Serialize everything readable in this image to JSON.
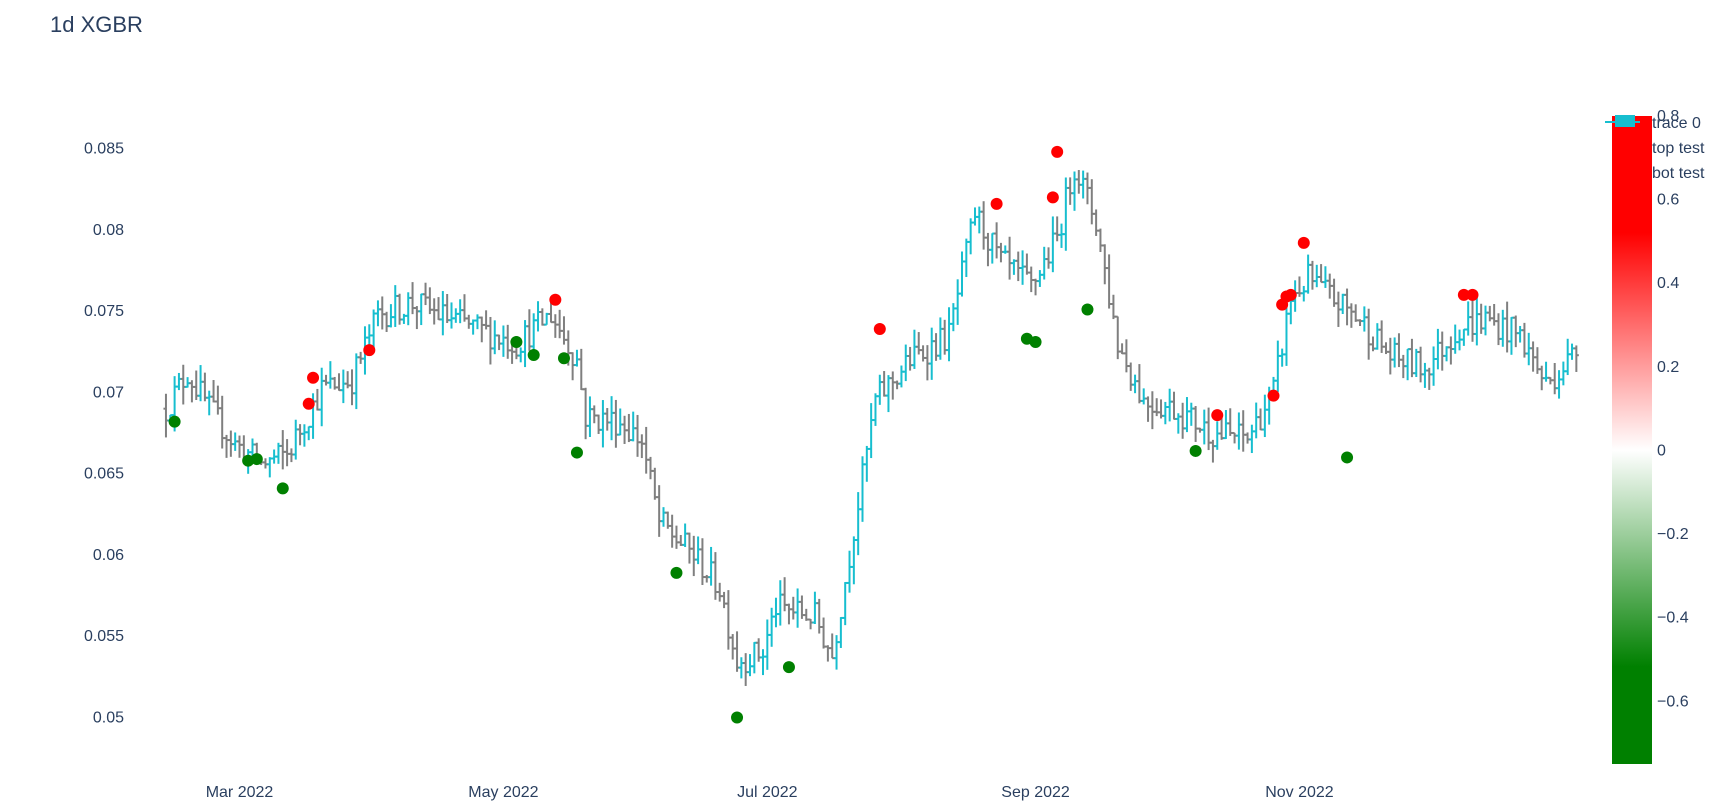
{
  "chart_data": {
    "type": "ohlc",
    "title": "1d XGBR",
    "xlabel": "",
    "ylabel": "",
    "grid": false,
    "x_range": [
      "2022-02-06",
      "2023-01-06"
    ],
    "y_range": [
      0.048,
      0.0875
    ],
    "x_ticks": [
      {
        "date": "2022-03-01",
        "label": "Mar 2022"
      },
      {
        "date": "2022-05-01",
        "label": "May 2022"
      },
      {
        "date": "2022-07-01",
        "label": "Jul 2022"
      },
      {
        "date": "2022-09-01",
        "label": "Sep 2022"
      },
      {
        "date": "2022-11-01",
        "label": "Nov 2022"
      }
    ],
    "y_ticks": [
      0.05,
      0.055,
      0.06,
      0.065,
      0.07,
      0.075,
      0.08,
      0.085
    ],
    "y_tick_labels": [
      "0.05",
      "0.055",
      "0.06",
      "0.065",
      "0.07",
      "0.075",
      "0.08",
      "0.085"
    ],
    "colors": {
      "increasing": "#17becf",
      "decreasing": "#7f7f7f",
      "top": "#ff0000",
      "bot": "#008000"
    },
    "price_path": [
      [
        "2022-02-12",
        0.069
      ],
      [
        "2022-02-17",
        0.0712
      ],
      [
        "2022-02-22",
        0.069
      ],
      [
        "2022-02-28",
        0.0668
      ],
      [
        "2022-03-06",
        0.0656
      ],
      [
        "2022-03-12",
        0.0662
      ],
      [
        "2022-03-20",
        0.0702
      ],
      [
        "2022-03-27",
        0.0708
      ],
      [
        "2022-04-02",
        0.0748
      ],
      [
        "2022-04-10",
        0.0755
      ],
      [
        "2022-04-18",
        0.0746
      ],
      [
        "2022-04-26",
        0.0738
      ],
      [
        "2022-05-04",
        0.073
      ],
      [
        "2022-05-12",
        0.0748
      ],
      [
        "2022-05-18",
        0.072
      ],
      [
        "2022-05-20",
        0.0685
      ],
      [
        "2022-05-28",
        0.0682
      ],
      [
        "2022-06-02",
        0.067
      ],
      [
        "2022-06-06",
        0.062
      ],
      [
        "2022-06-14",
        0.06
      ],
      [
        "2022-06-20",
        0.058
      ],
      [
        "2022-06-24",
        0.0535
      ],
      [
        "2022-06-30",
        0.054
      ],
      [
        "2022-07-03",
        0.0568
      ],
      [
        "2022-07-12",
        0.0562
      ],
      [
        "2022-07-16",
        0.0538
      ],
      [
        "2022-07-20",
        0.06
      ],
      [
        "2022-07-26",
        0.0695
      ],
      [
        "2022-08-03",
        0.072
      ],
      [
        "2022-08-12",
        0.0735
      ],
      [
        "2022-08-18",
        0.081
      ],
      [
        "2022-08-24",
        0.078
      ],
      [
        "2022-08-31",
        0.0765
      ],
      [
        "2022-09-06",
        0.0795
      ],
      [
        "2022-09-10",
        0.084
      ],
      [
        "2022-09-15",
        0.0805
      ],
      [
        "2022-09-20",
        0.073
      ],
      [
        "2022-09-26",
        0.0695
      ],
      [
        "2022-10-03",
        0.069
      ],
      [
        "2022-10-12",
        0.0675
      ],
      [
        "2022-10-20",
        0.0672
      ],
      [
        "2022-10-26",
        0.07
      ],
      [
        "2022-10-30",
        0.0758
      ],
      [
        "2022-11-03",
        0.077
      ],
      [
        "2022-11-10",
        0.0755
      ],
      [
        "2022-11-15",
        0.0745
      ],
      [
        "2022-11-22",
        0.0722
      ],
      [
        "2022-11-30",
        0.0715
      ],
      [
        "2022-12-08",
        0.074
      ],
      [
        "2022-12-14",
        0.0745
      ],
      [
        "2022-12-22",
        0.0735
      ],
      [
        "2022-12-28",
        0.0705
      ],
      [
        "2023-01-04",
        0.0725
      ]
    ],
    "series": [
      {
        "name": "top test",
        "color": "#ff0000",
        "points": [
          {
            "x": "2022-03-17",
            "y": 0.0693
          },
          {
            "x": "2022-03-18",
            "y": 0.0709
          },
          {
            "x": "2022-03-31",
            "y": 0.0726
          },
          {
            "x": "2022-05-13",
            "y": 0.0757
          },
          {
            "x": "2022-07-27",
            "y": 0.0739
          },
          {
            "x": "2022-08-23",
            "y": 0.0816
          },
          {
            "x": "2022-09-05",
            "y": 0.082
          },
          {
            "x": "2022-09-06",
            "y": 0.0848
          },
          {
            "x": "2022-10-13",
            "y": 0.0686
          },
          {
            "x": "2022-10-26",
            "y": 0.0698
          },
          {
            "x": "2022-10-28",
            "y": 0.0754
          },
          {
            "x": "2022-10-29",
            "y": 0.0759
          },
          {
            "x": "2022-10-30",
            "y": 0.076
          },
          {
            "x": "2022-11-02",
            "y": 0.0792
          },
          {
            "x": "2022-12-09",
            "y": 0.076
          },
          {
            "x": "2022-12-11",
            "y": 0.076
          }
        ]
      },
      {
        "name": "bot test",
        "color": "#008000",
        "points": [
          {
            "x": "2022-02-14",
            "y": 0.0682
          },
          {
            "x": "2022-03-03",
            "y": 0.0658
          },
          {
            "x": "2022-03-05",
            "y": 0.0659
          },
          {
            "x": "2022-03-11",
            "y": 0.0641
          },
          {
            "x": "2022-05-04",
            "y": 0.0731
          },
          {
            "x": "2022-05-08",
            "y": 0.0723
          },
          {
            "x": "2022-05-15",
            "y": 0.0721
          },
          {
            "x": "2022-05-18",
            "y": 0.0663
          },
          {
            "x": "2022-06-10",
            "y": 0.0589
          },
          {
            "x": "2022-06-24",
            "y": 0.05
          },
          {
            "x": "2022-07-06",
            "y": 0.0531
          },
          {
            "x": "2022-08-30",
            "y": 0.0733
          },
          {
            "x": "2022-09-01",
            "y": 0.0731
          },
          {
            "x": "2022-09-13",
            "y": 0.0751
          },
          {
            "x": "2022-10-08",
            "y": 0.0664
          },
          {
            "x": "2022-11-12",
            "y": 0.066
          }
        ]
      }
    ],
    "legend": {
      "placement": "top-right",
      "items": [
        {
          "label": "trace 0",
          "color": "#17becf"
        },
        {
          "label": "top test",
          "color": "#ff0000"
        },
        {
          "label": "bot test",
          "color": "#008000"
        }
      ]
    },
    "colorbar": {
      "range": [
        -0.75,
        0.8
      ],
      "ticks": [
        0.8,
        0.6,
        0.4,
        0.2,
        0,
        -0.2,
        -0.4,
        -0.6
      ],
      "tick_labels": [
        "0.8",
        "0.6",
        "0.4",
        "0.2",
        "0",
        "−0.2",
        "−0.4",
        "−0.6"
      ],
      "colors": [
        "#008000",
        "#ffffff",
        "#ff0000"
      ]
    }
  }
}
